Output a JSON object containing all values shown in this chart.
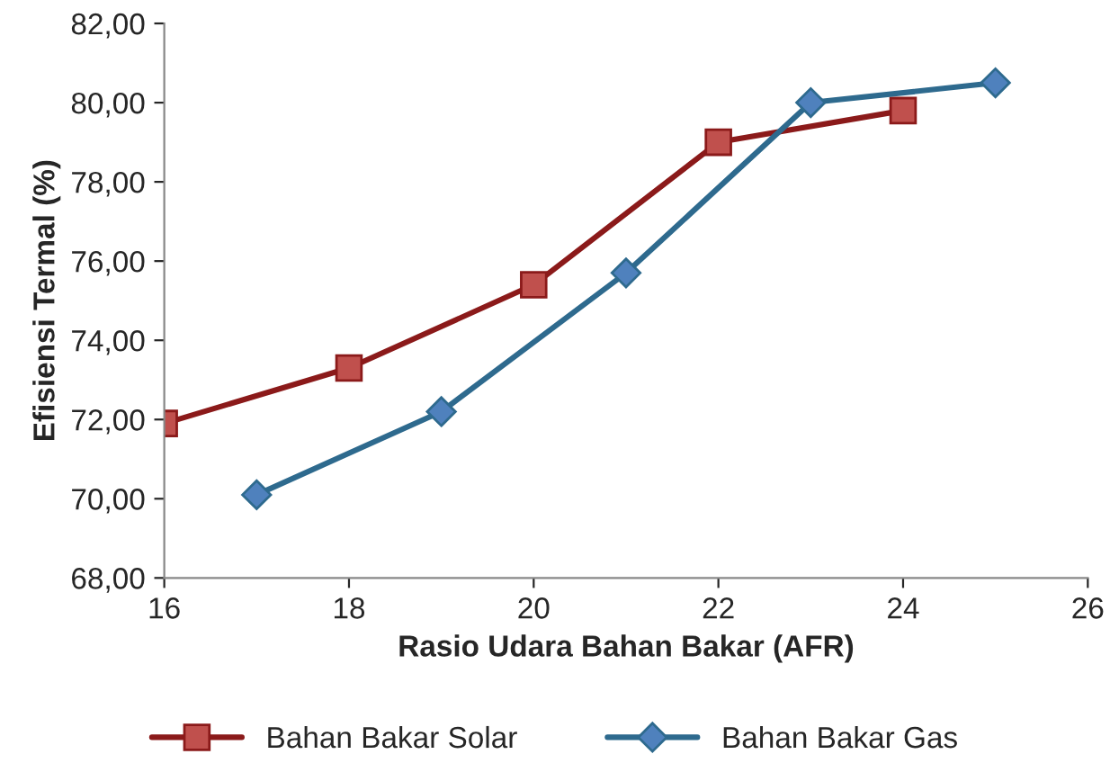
{
  "chart_data": {
    "type": "line",
    "xlabel": "Rasio Udara Bahan Bakar (AFR)",
    "ylabel": "Efisiensi Termal (%)",
    "xlim": [
      16,
      26
    ],
    "xticks": [
      16,
      18,
      20,
      22,
      24,
      26
    ],
    "ylim": [
      68,
      82
    ],
    "yticks": [
      {
        "value": 68,
        "label": "68,00"
      },
      {
        "value": 70,
        "label": "70,00"
      },
      {
        "value": 72,
        "label": "72,00"
      },
      {
        "value": 74,
        "label": "74,00"
      },
      {
        "value": 76,
        "label": "76,00"
      },
      {
        "value": 78,
        "label": "78,00"
      },
      {
        "value": 80,
        "label": "80,00"
      },
      {
        "value": 82,
        "label": "82,00"
      }
    ],
    "grid": false,
    "legend": "bottom",
    "series": [
      {
        "name": "Bahan Bakar Solar",
        "color": "#8b1a1a",
        "marker": "square",
        "x": [
          16,
          18,
          20,
          22,
          24
        ],
        "values": [
          71.9,
          73.3,
          75.4,
          79.0,
          79.8
        ]
      },
      {
        "name": "Bahan Bakar Gas",
        "color": "#2e6a8e",
        "marker": "diamond",
        "x": [
          17,
          19,
          21,
          23,
          25
        ],
        "values": [
          70.1,
          72.2,
          75.7,
          80.0,
          80.5
        ]
      }
    ]
  }
}
